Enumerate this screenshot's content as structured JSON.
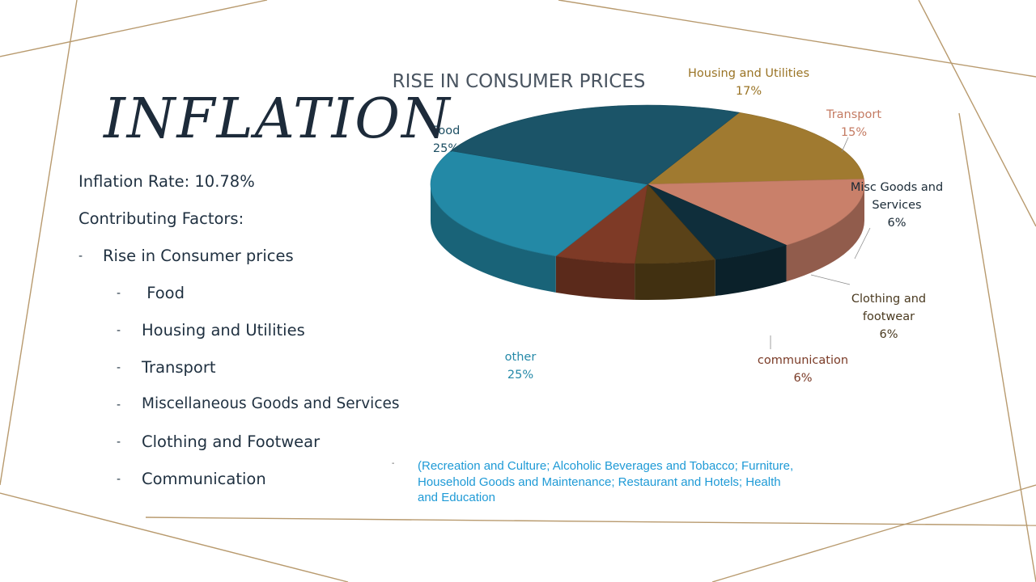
{
  "slide": {
    "title": "INFLATION",
    "bullets": [
      {
        "text": "Inflation Rate: 10.78%",
        "level": 0
      },
      {
        "text": "Contributing Factors:",
        "level": 0
      },
      {
        "text": "Rise in Consumer prices",
        "level": 1
      },
      {
        "text": " Food",
        "level": 2
      },
      {
        "text": "Housing and Utilities",
        "level": 2
      },
      {
        "text": "Transport",
        "level": 2
      },
      {
        "text": "Miscellaneous Goods and Services",
        "level": 2
      },
      {
        "text": "Clothing and Footwear",
        "level": 2
      },
      {
        "text": "Communication",
        "level": 2
      }
    ],
    "dash_glyph": "-",
    "note": "(Recreation and Culture; Alcoholic Beverages and Tobacco; Furniture, Household Goods and Maintenance; Restaurant and Hotels; Health and Education"
  },
  "colors": {
    "accent": "#b89a6e",
    "note": "#1e9ad6"
  },
  "chart_data": {
    "type": "pie",
    "title": "RISE IN CONSUMER PRICES",
    "slices": [
      {
        "label": "Housing and Utilities",
        "value": 17,
        "pct": "17%",
        "color": "#a07a30",
        "label_color": "#9a7426"
      },
      {
        "label": "Transport",
        "value": 15,
        "pct": "15%",
        "color": "#c9806a",
        "label_color": "#c47b63"
      },
      {
        "label": "Misc Goods and Services",
        "value": 6,
        "pct": "6%",
        "color": "#0f2e3b",
        "label_color": "#1a2a36"
      },
      {
        "label": "Clothing and footwear",
        "value": 6,
        "pct": "6%",
        "color": "#5a4218",
        "label_color": "#4a3a20"
      },
      {
        "label": "communication",
        "value": 6,
        "pct": "6%",
        "color": "#7e3a26",
        "label_color": "#7a3a26"
      },
      {
        "label": "other",
        "value": 25,
        "pct": "25%",
        "color": "#2389a6",
        "label_color": "#2589a8"
      },
      {
        "label": "Food",
        "value": 25,
        "pct": "25%",
        "color": "#1b5468",
        "label_color": "#1d4f63"
      }
    ]
  }
}
